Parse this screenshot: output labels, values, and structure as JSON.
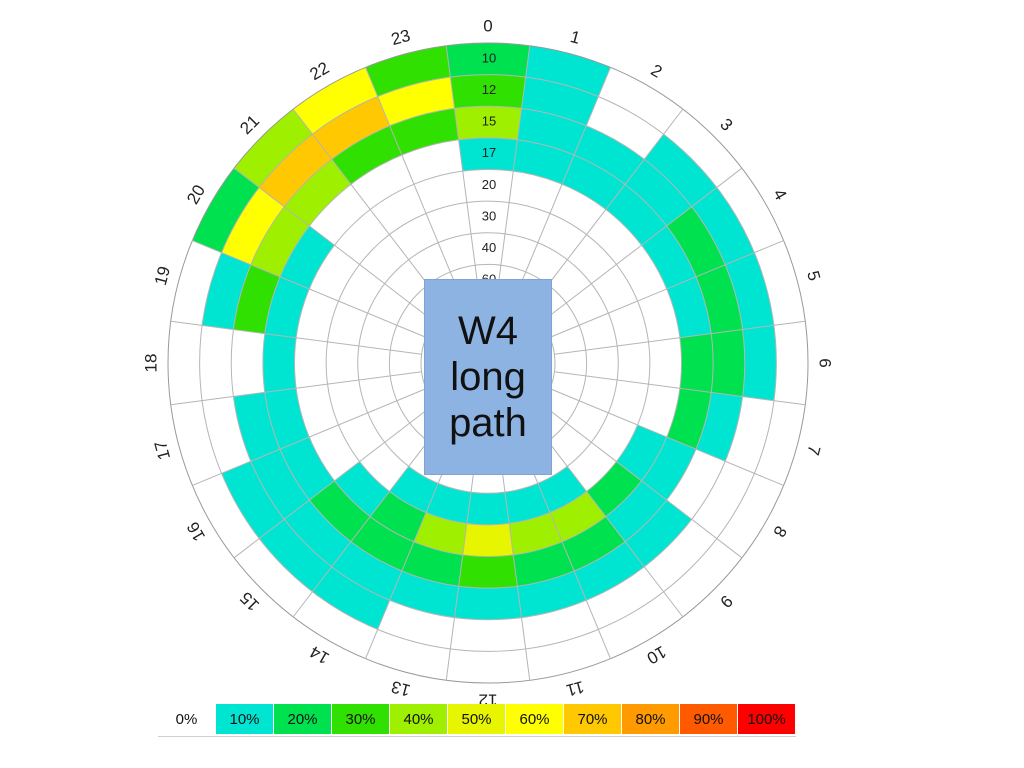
{
  "chart_data": {
    "type": "heatmap",
    "title": "W4 long path",
    "title_lines": [
      "W4",
      "long",
      "path"
    ],
    "angular_categories": [
      "0",
      "1",
      "2",
      "3",
      "4",
      "5",
      "6",
      "7",
      "8",
      "9",
      "10",
      "11",
      "12",
      "13",
      "14",
      "15",
      "16",
      "17",
      "18",
      "19",
      "20",
      "21",
      "22",
      "23"
    ],
    "radial_categories": [
      "10",
      "12",
      "15",
      "17",
      "20",
      "30",
      "40",
      "60"
    ],
    "grid": true,
    "legend_placement": "bottom",
    "values": [
      [
        20,
        30,
        40,
        10,
        0,
        0,
        0,
        0
      ],
      [
        10,
        10,
        10,
        10,
        0,
        0,
        0,
        0
      ],
      [
        0,
        0,
        10,
        10,
        0,
        0,
        0,
        0
      ],
      [
        0,
        10,
        10,
        10,
        0,
        0,
        0,
        0
      ],
      [
        0,
        10,
        20,
        10,
        0,
        0,
        0,
        0
      ],
      [
        0,
        10,
        20,
        10,
        0,
        0,
        0,
        0
      ],
      [
        0,
        10,
        20,
        20,
        0,
        0,
        0,
        0
      ],
      [
        0,
        0,
        10,
        20,
        0,
        0,
        0,
        0
      ],
      [
        0,
        0,
        0,
        10,
        10,
        0,
        0,
        0
      ],
      [
        0,
        0,
        10,
        10,
        20,
        0,
        0,
        0
      ],
      [
        0,
        0,
        10,
        20,
        40,
        10,
        0,
        0
      ],
      [
        0,
        0,
        10,
        20,
        40,
        10,
        0,
        0
      ],
      [
        0,
        0,
        10,
        30,
        50,
        10,
        0,
        0
      ],
      [
        0,
        0,
        10,
        20,
        40,
        10,
        0,
        0
      ],
      [
        0,
        10,
        10,
        20,
        20,
        10,
        0,
        0
      ],
      [
        0,
        10,
        10,
        20,
        10,
        0,
        0,
        0
      ],
      [
        0,
        10,
        10,
        10,
        0,
        0,
        0,
        0
      ],
      [
        0,
        0,
        10,
        10,
        0,
        0,
        0,
        0
      ],
      [
        0,
        0,
        0,
        10,
        0,
        0,
        0,
        0
      ],
      [
        0,
        10,
        30,
        10,
        0,
        0,
        0,
        0
      ],
      [
        20,
        60,
        40,
        10,
        0,
        0,
        0,
        0
      ],
      [
        40,
        70,
        40,
        0,
        0,
        0,
        0,
        0
      ],
      [
        60,
        70,
        30,
        0,
        0,
        0,
        0,
        0
      ],
      [
        30,
        60,
        30,
        0,
        0,
        0,
        0,
        0
      ]
    ],
    "legend": {
      "labels": [
        "0%",
        "10%",
        "20%",
        "30%",
        "40%",
        "50%",
        "60%",
        "70%",
        "80%",
        "90%",
        "100%"
      ],
      "thresholds": [
        0,
        10,
        20,
        30,
        40,
        50,
        60,
        70,
        80,
        90,
        100
      ],
      "colors": [
        "#ffffff",
        "#00e5d2",
        "#00e14f",
        "#30e000",
        "#9ef000",
        "#e8f500",
        "#ffff00",
        "#ffc800",
        "#ff9a00",
        "#ff5a00",
        "#ff0000"
      ],
      "low_color": "#b8f7f9"
    }
  }
}
